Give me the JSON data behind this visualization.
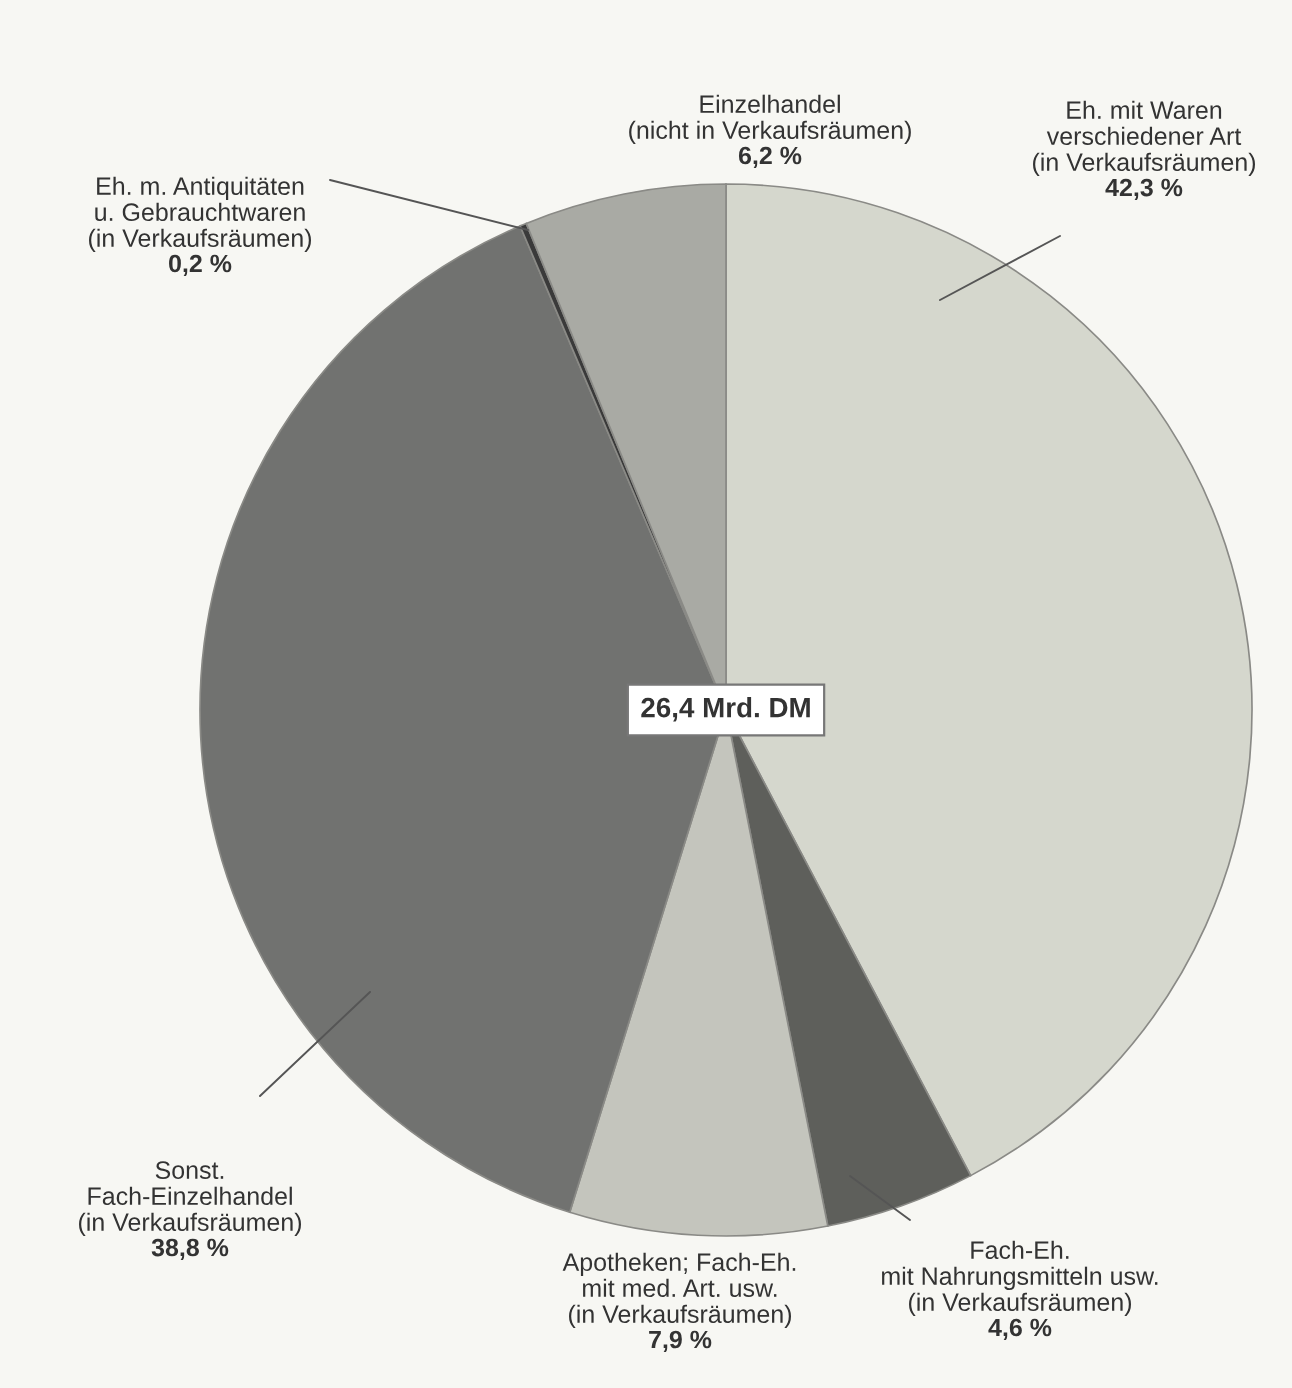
{
  "chart_data": {
    "type": "pie",
    "categories": [
      "Eh. mit Waren\nverschiedener Art\n(in Verkaufsräumen)",
      "Fach-Eh.\nmit Nahrungsmitteln usw.\n(in Verkaufsräumen)",
      "Apotheken; Fach-Eh.\nmit med. Art. usw.\n(in Verkaufsräumen)",
      "Sonst.\nFach-Einzelhandel\n(in Verkaufsräumen)",
      "Eh. m. Antiquitäten\nu. Gebrauchtwaren\n(in Verkaufsräumen)",
      "Einzelhandel\n(nicht in Verkaufsräumen)"
    ],
    "values": [
      42.3,
      4.6,
      7.9,
      38.8,
      0.2,
      6.2
    ],
    "value_labels": [
      "42,3 %",
      "4,6 %",
      "7,9 %",
      "38,8 %",
      "0,2 %",
      "6,2 %"
    ],
    "colors": [
      "#d5d7cd",
      "#5e5f5b",
      "#c4c5bd",
      "#717270",
      "#3a3a3a",
      "#a9aaa4"
    ],
    "annotations": [
      "26,4 Mrd. DM"
    ]
  }
}
